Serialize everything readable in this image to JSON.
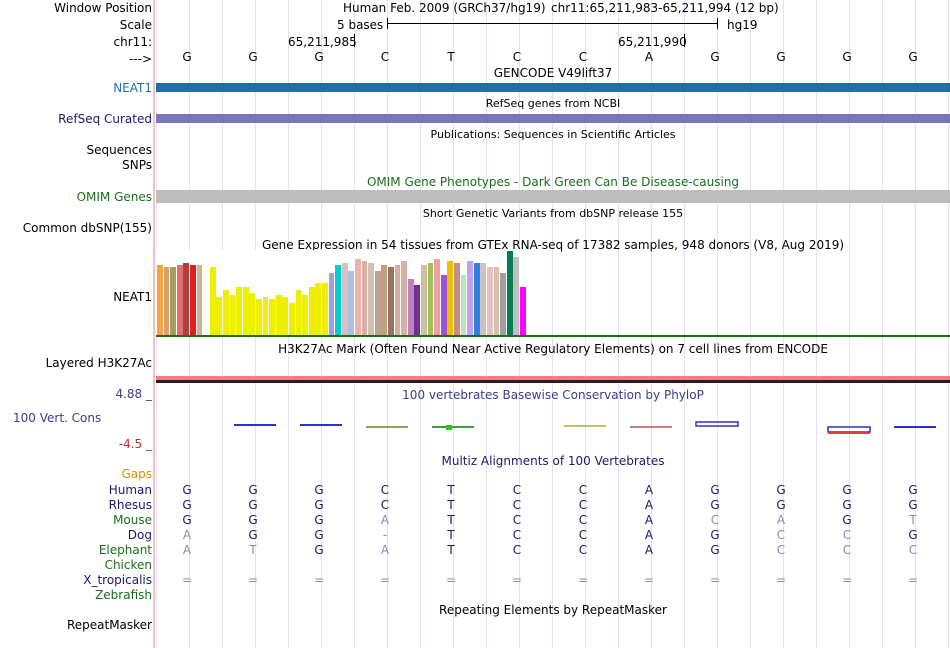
{
  "header": {
    "window_position_label": "Window Position",
    "scale_label": "Scale",
    "chrom_label": "chr11:",
    "arrow_label": "--->",
    "assembly": "Human Feb. 2009 (GRCh37/hg19)",
    "position": "chr11:65,211,983-65,211,994 (12 bp)",
    "scale_text": "5 bases",
    "db_text": "hg19",
    "pos_tick_1": "65,211,985",
    "pos_tick_2": "65,211,990"
  },
  "sequence": [
    "G",
    "G",
    "G",
    "C",
    "T",
    "C",
    "C",
    "A",
    "G",
    "G",
    "G",
    "G"
  ],
  "tracks": {
    "gencode": {
      "title": "GENCODE V49lift37",
      "label": "NEAT1",
      "color": "#1f6fa8"
    },
    "refseq": {
      "title": "RefSeq genes from NCBI",
      "label": "RefSeq Curated",
      "color": "#7878b8"
    },
    "publications": {
      "title": "Publications: Sequences in Scientific Articles",
      "label_1": "Sequences",
      "label_2": "SNPs"
    },
    "omim": {
      "title": "OMIM Gene Phenotypes - Dark Green Can Be Disease-causing",
      "label": "OMIM Genes",
      "color": "#bdbdbd"
    },
    "dbsnp": {
      "title": "Short Genetic Variants from dbSNP release 155",
      "label": "Common dbSNP(155)"
    },
    "gtex": {
      "title": "Gene Expression in 54 tissues from GTEx RNA-seq of 17382 samples, 948 donors (V8, Aug 2019)",
      "label": "NEAT1"
    },
    "h3k27ac": {
      "title": "H3K27Ac Mark (Often Found Near Active Regulatory Elements) on 7 cell lines from ENCODE",
      "label": "Layered H3K27Ac"
    },
    "phylop": {
      "title": "100 vertebrates Basewise Conservation by PhyloP",
      "label": "100 Vert. Cons",
      "max": "4.88 _",
      "min": "-4.5 _"
    },
    "multiz": {
      "title": "Multiz Alignments of 100 Vertebrates",
      "gaps_label": "Gaps"
    },
    "repeatmasker": {
      "title": "Repeating Elements by RepeatMasker",
      "label": "RepeatMasker"
    }
  },
  "species": [
    {
      "name": "Human",
      "color": "#1a1a6e",
      "bases": [
        "G",
        "G",
        "G",
        "C",
        "T",
        "C",
        "C",
        "A",
        "G",
        "G",
        "G",
        "G"
      ]
    },
    {
      "name": "Rhesus",
      "color": "#1a1a6e",
      "bases": [
        "G",
        "G",
        "G",
        "C",
        "T",
        "C",
        "C",
        "A",
        "G",
        "G",
        "G",
        "G"
      ]
    },
    {
      "name": "Mouse",
      "color": "#1a6e1a",
      "bases": [
        "G",
        "G",
        "G",
        "A",
        "T",
        "C",
        "C",
        "A",
        "C",
        "A",
        "G",
        "T"
      ]
    },
    {
      "name": "Dog",
      "color": "#1a1a6e",
      "bases": [
        "A",
        "G",
        "G",
        "-",
        "T",
        "C",
        "C",
        "A",
        "G",
        "C",
        "C",
        "G"
      ]
    },
    {
      "name": "Elephant",
      "color": "#1a6e1a",
      "bases": [
        "A",
        "T",
        "G",
        "A",
        "T",
        "C",
        "C",
        "A",
        "G",
        "C",
        "C",
        "C"
      ]
    },
    {
      "name": "Chicken",
      "color": "#1a6e1a",
      "bases": []
    },
    {
      "name": "X_tropicalis",
      "color": "#1a1a6e",
      "bases": [
        "=",
        "=",
        "=",
        "=",
        "=",
        "=",
        "=",
        "=",
        "=",
        "=",
        "=",
        "="
      ]
    },
    {
      "name": "Zebrafish",
      "color": "#1a6e1a",
      "bases": []
    }
  ],
  "colors": {
    "label_blue": "#1a1a6e",
    "neat1_blue": "#1f6fa8",
    "omim_green": "#1a6e1a",
    "gaps_orange": "#d6900a",
    "phylop_blue": "#3c3c8c"
  }
}
